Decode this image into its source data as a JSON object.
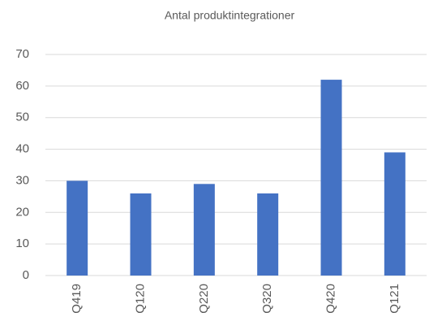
{
  "chart_data": {
    "type": "bar",
    "title": "Antal produktintegrationer",
    "categories": [
      "Q419",
      "Q120",
      "Q220",
      "Q320",
      "Q420",
      "Q121"
    ],
    "values": [
      30,
      26,
      29,
      26,
      62,
      39
    ],
    "color": "#4472c4",
    "ylim": [
      0,
      70
    ],
    "yticks": [
      0,
      10,
      20,
      30,
      40,
      50,
      60,
      70
    ],
    "grid": true
  }
}
